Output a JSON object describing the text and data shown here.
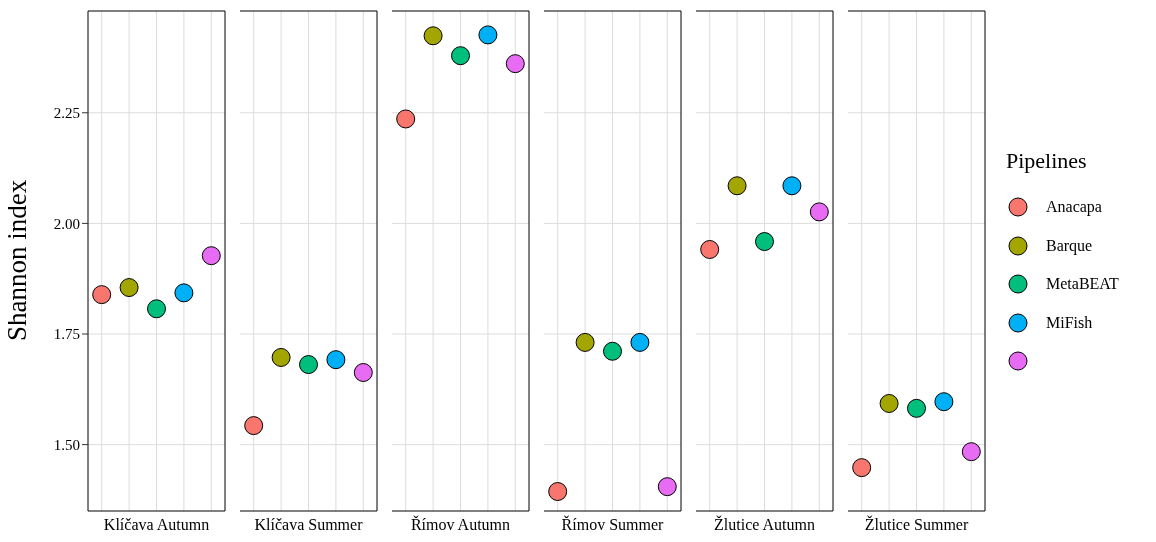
{
  "chart_data": {
    "type": "scatter",
    "ylabel": "Shannon index",
    "legend_title": "Pipelines",
    "legend": "right",
    "categories": [
      "Klíčava Autumn",
      "Klíčava Summer",
      "Římov Autumn",
      "Římov Summer",
      "Žlutice Autumn",
      "Žlutice Summer"
    ],
    "ylim": [
      1.35,
      2.48
    ],
    "yticks": [
      {
        "value": 1.5,
        "label": "1.50"
      },
      {
        "value": 1.75,
        "label": "1.75"
      },
      {
        "value": 2,
        "label": "2.00"
      },
      {
        "value": 2.25,
        "label": "2.25"
      }
    ],
    "grid": true,
    "marker": "circle",
    "series": [
      {
        "name": "Anacapa",
        "color": "#f8766d",
        "values": [
          1.839,
          1.543,
          2.236,
          1.394,
          1.941,
          1.448
        ]
      },
      {
        "name": "Barque",
        "color": "#a3a500",
        "values": [
          1.855,
          1.697,
          2.424,
          1.731,
          2.085,
          1.593
        ]
      },
      {
        "name": "MetaBEAT",
        "color": "#00bf7d",
        "values": [
          1.807,
          1.681,
          2.379,
          1.711,
          1.959,
          1.582
        ]
      },
      {
        "name": "MiFish",
        "color": "#00b0f6",
        "values": [
          1.843,
          1.692,
          2.426,
          1.731,
          2.085,
          1.597
        ]
      },
      {
        "color": "#e76bf3",
        "values": [
          1.927,
          1.663,
          2.361,
          1.405,
          2.026,
          1.484
        ]
      }
    ]
  }
}
